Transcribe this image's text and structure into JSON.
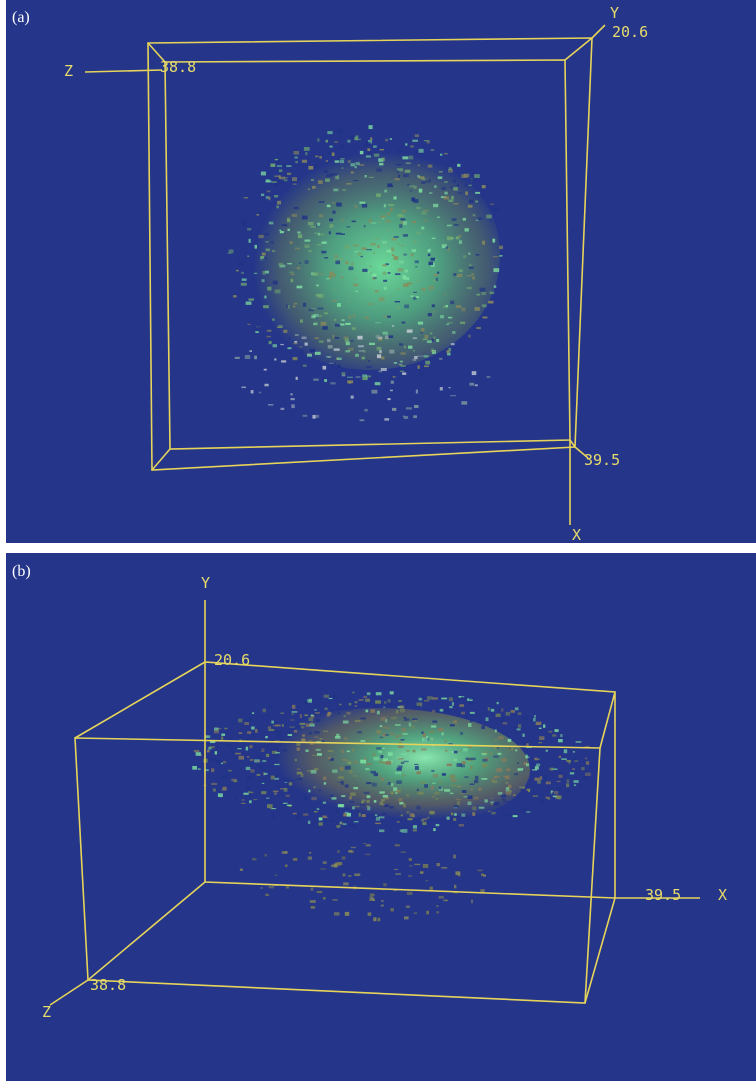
{
  "panels": [
    {
      "label": "(a)",
      "axes": {
        "x": "X",
        "y": "Y",
        "z": "Z"
      },
      "ticks": {
        "x": "39.5",
        "y": "20.6",
        "z": "38.8"
      }
    },
    {
      "label": "(b)",
      "axes": {
        "x": "X",
        "y": "Y",
        "z": "Z"
      },
      "ticks": {
        "x": "39.5",
        "y": "20.6",
        "z": "38.8"
      }
    }
  ]
}
